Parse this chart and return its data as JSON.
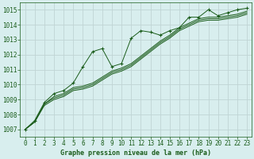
{
  "title": "Graphe pression niveau de la mer (hPa)",
  "bg_color": "#d8eeee",
  "grid_color": "#c0d4d4",
  "line_color": "#1a5c1a",
  "xlim": [
    -0.5,
    23.5
  ],
  "ylim": [
    1006.5,
    1015.5
  ],
  "yticks": [
    1007,
    1008,
    1009,
    1010,
    1011,
    1012,
    1013,
    1014,
    1015
  ],
  "xticks": [
    0,
    1,
    2,
    3,
    4,
    5,
    6,
    7,
    8,
    9,
    10,
    11,
    12,
    13,
    14,
    15,
    16,
    17,
    18,
    19,
    20,
    21,
    22,
    23
  ],
  "series_smooth": [
    [
      1007.0,
      1007.5,
      1008.7,
      1009.2,
      1009.4,
      1009.8,
      1009.9,
      1010.1,
      1010.5,
      1010.9,
      1011.1,
      1011.4,
      1011.9,
      1012.4,
      1012.9,
      1013.3,
      1013.8,
      1014.1,
      1014.4,
      1014.5,
      1014.5,
      1014.6,
      1014.7,
      1014.9
    ],
    [
      1007.0,
      1007.5,
      1008.7,
      1009.1,
      1009.3,
      1009.7,
      1009.8,
      1010.0,
      1010.4,
      1010.8,
      1011.0,
      1011.3,
      1011.8,
      1012.3,
      1012.8,
      1013.2,
      1013.7,
      1014.0,
      1014.3,
      1014.4,
      1014.4,
      1014.5,
      1014.6,
      1014.8
    ],
    [
      1007.0,
      1007.5,
      1008.6,
      1009.0,
      1009.2,
      1009.6,
      1009.7,
      1009.9,
      1010.3,
      1010.7,
      1010.9,
      1011.2,
      1011.7,
      1012.2,
      1012.7,
      1013.1,
      1013.6,
      1013.9,
      1014.2,
      1014.3,
      1014.3,
      1014.4,
      1014.5,
      1014.7
    ]
  ],
  "series_marker": [
    1007.0,
    1007.6,
    1008.8,
    1009.4,
    1009.6,
    1010.1,
    1011.2,
    1012.2,
    1012.4,
    1011.2,
    1011.4,
    1013.1,
    1013.6,
    1013.5,
    1013.3,
    1013.6,
    1013.8,
    1014.5,
    1014.5,
    1015.0,
    1014.6,
    1014.8,
    1015.0,
    1015.1
  ],
  "tick_fontsize": 5.5,
  "label_fontsize": 6.0,
  "figsize": [
    3.2,
    2.0
  ],
  "dpi": 100
}
